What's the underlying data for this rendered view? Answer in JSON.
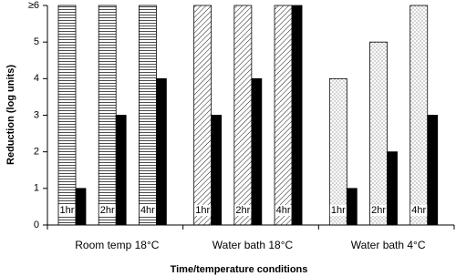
{
  "chart_data": {
    "type": "bar",
    "y_label": "Reduction (log units)",
    "x_label": "Time/temperature conditions",
    "groups": [
      "Room temp 18°C",
      "Water bath 18°C",
      "Water bath 4°C"
    ],
    "patterns": [
      "horizontal-lines",
      "diagonal-lines",
      "dots"
    ],
    "categories": [
      "1hr",
      "2hr",
      "4hr",
      "1hr",
      "2hr",
      "4hr",
      "1hr",
      "2hr",
      "4hr"
    ],
    "series": [
      {
        "color": "#ffffff",
        "values": [
          6,
          6,
          6,
          6,
          6,
          6,
          4,
          5,
          6
        ]
      },
      {
        "color": "#000000",
        "values": [
          1,
          3,
          4,
          3,
          4,
          6,
          1,
          2,
          3
        ]
      }
    ],
    "ylim": [
      0,
      6
    ],
    "yticks": [
      0,
      1,
      2,
      3,
      4,
      5,
      {
        "value": 6,
        "label": "≥6"
      }
    ]
  }
}
